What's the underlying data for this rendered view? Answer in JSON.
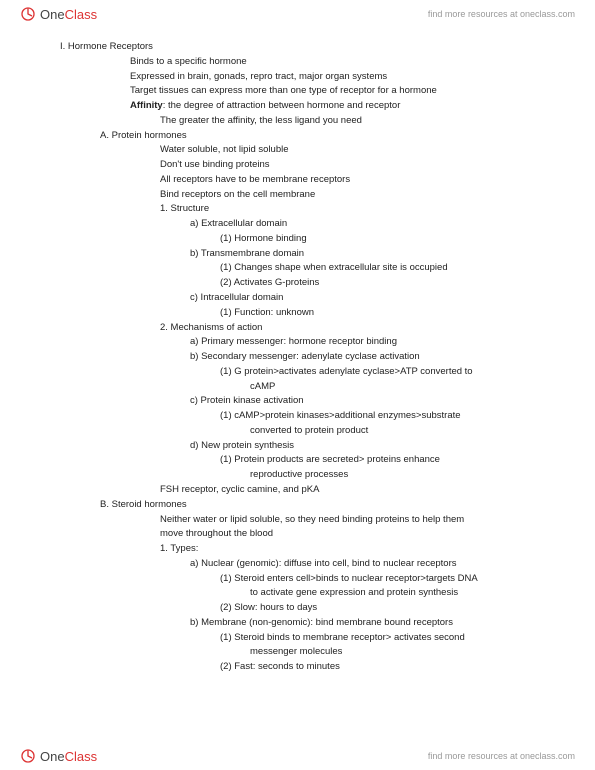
{
  "brand": {
    "one": "One",
    "class": "Class",
    "tagline": "find more resources at oneclass.com"
  },
  "lines": [
    {
      "cls": "l0",
      "text": "I.      Hormone Receptors"
    },
    {
      "cls": "l2",
      "text": "Binds to a specific hormone"
    },
    {
      "cls": "l2",
      "text": "Expressed in brain, gonads, repro tract, major organ systems"
    },
    {
      "cls": "l2",
      "text": "Target tissues can express more than one type of receptor for a hormone"
    },
    {
      "cls": "l2",
      "html": "<span class='bold'>Affinity</span>: the degree of attraction between hormone and receptor"
    },
    {
      "cls": "l3",
      "text": "The greater the affinity, the less ligand you need"
    },
    {
      "cls": "l1",
      "text": "A.   Protein hormones"
    },
    {
      "cls": "l3",
      "text": "Water soluble, not lipid soluble"
    },
    {
      "cls": "l3",
      "text": "Don't use binding proteins"
    },
    {
      "cls": "l3",
      "text": "All receptors have to be membrane receptors"
    },
    {
      "cls": "l3",
      "text": "Bind receptors on the cell membrane"
    },
    {
      "cls": "l4",
      "text": "1.   Structure"
    },
    {
      "cls": "l5",
      "text": "a)   Extracellular domain"
    },
    {
      "cls": "l6",
      "text": "(1)  Hormone binding"
    },
    {
      "cls": "l5",
      "text": "b)   Transmembrane domain"
    },
    {
      "cls": "l6",
      "text": "(1)  Changes shape when extracellular site is occupied"
    },
    {
      "cls": "l6",
      "text": "(2)  Activates G-proteins"
    },
    {
      "cls": "l5",
      "text": "c)   Intracellular domain"
    },
    {
      "cls": "l6",
      "text": "(1)  Function: unknown"
    },
    {
      "cls": "l4",
      "text": "2.   Mechanisms of action"
    },
    {
      "cls": "l5",
      "text": "a)   Primary messenger: hormone receptor binding"
    },
    {
      "cls": "l5",
      "text": "b)   Secondary messenger: adenylate cyclase activation"
    },
    {
      "cls": "l6",
      "text": "(1)  G protein>activates adenylate cyclase>ATP converted to"
    },
    {
      "cls": "l7",
      "text": "cAMP"
    },
    {
      "cls": "l5",
      "text": "c)   Protein kinase activation"
    },
    {
      "cls": "l6",
      "text": "(1)  cAMP>protein kinases>additional enzymes>substrate"
    },
    {
      "cls": "l7",
      "text": "converted to protein product"
    },
    {
      "cls": "l5",
      "text": "d)   New protein synthesis"
    },
    {
      "cls": "l6",
      "text": "(1)  Protein products are secreted> proteins enhance"
    },
    {
      "cls": "l7",
      "text": "reproductive processes"
    },
    {
      "cls": "l3",
      "text": "FSH receptor, cyclic camine, and pKA"
    },
    {
      "cls": "l1",
      "text": "B.   Steroid hormones"
    },
    {
      "cls": "l3",
      "text": "Neither water or lipid soluble, so they need binding proteins to help them"
    },
    {
      "cls": "l3",
      "text": "move throughout the blood"
    },
    {
      "cls": "l4",
      "text": "1.   Types:"
    },
    {
      "cls": "l5",
      "text": "a)   Nuclear (genomic): diffuse into cell, bind to nuclear receptors"
    },
    {
      "cls": "l6",
      "text": "(1)  Steroid enters cell>binds to nuclear receptor>targets DNA"
    },
    {
      "cls": "l7",
      "text": "to activate gene expression and protein synthesis"
    },
    {
      "cls": "l6",
      "text": "(2)  Slow: hours to days"
    },
    {
      "cls": "l5",
      "text": "b)   Membrane (non-genomic): bind membrane bound receptors"
    },
    {
      "cls": "l6",
      "text": "(1)  Steroid binds to membrane receptor> activates second"
    },
    {
      "cls": "l7",
      "text": "messenger molecules"
    },
    {
      "cls": "l6",
      "text": "(2)  Fast: seconds to minutes"
    }
  ]
}
